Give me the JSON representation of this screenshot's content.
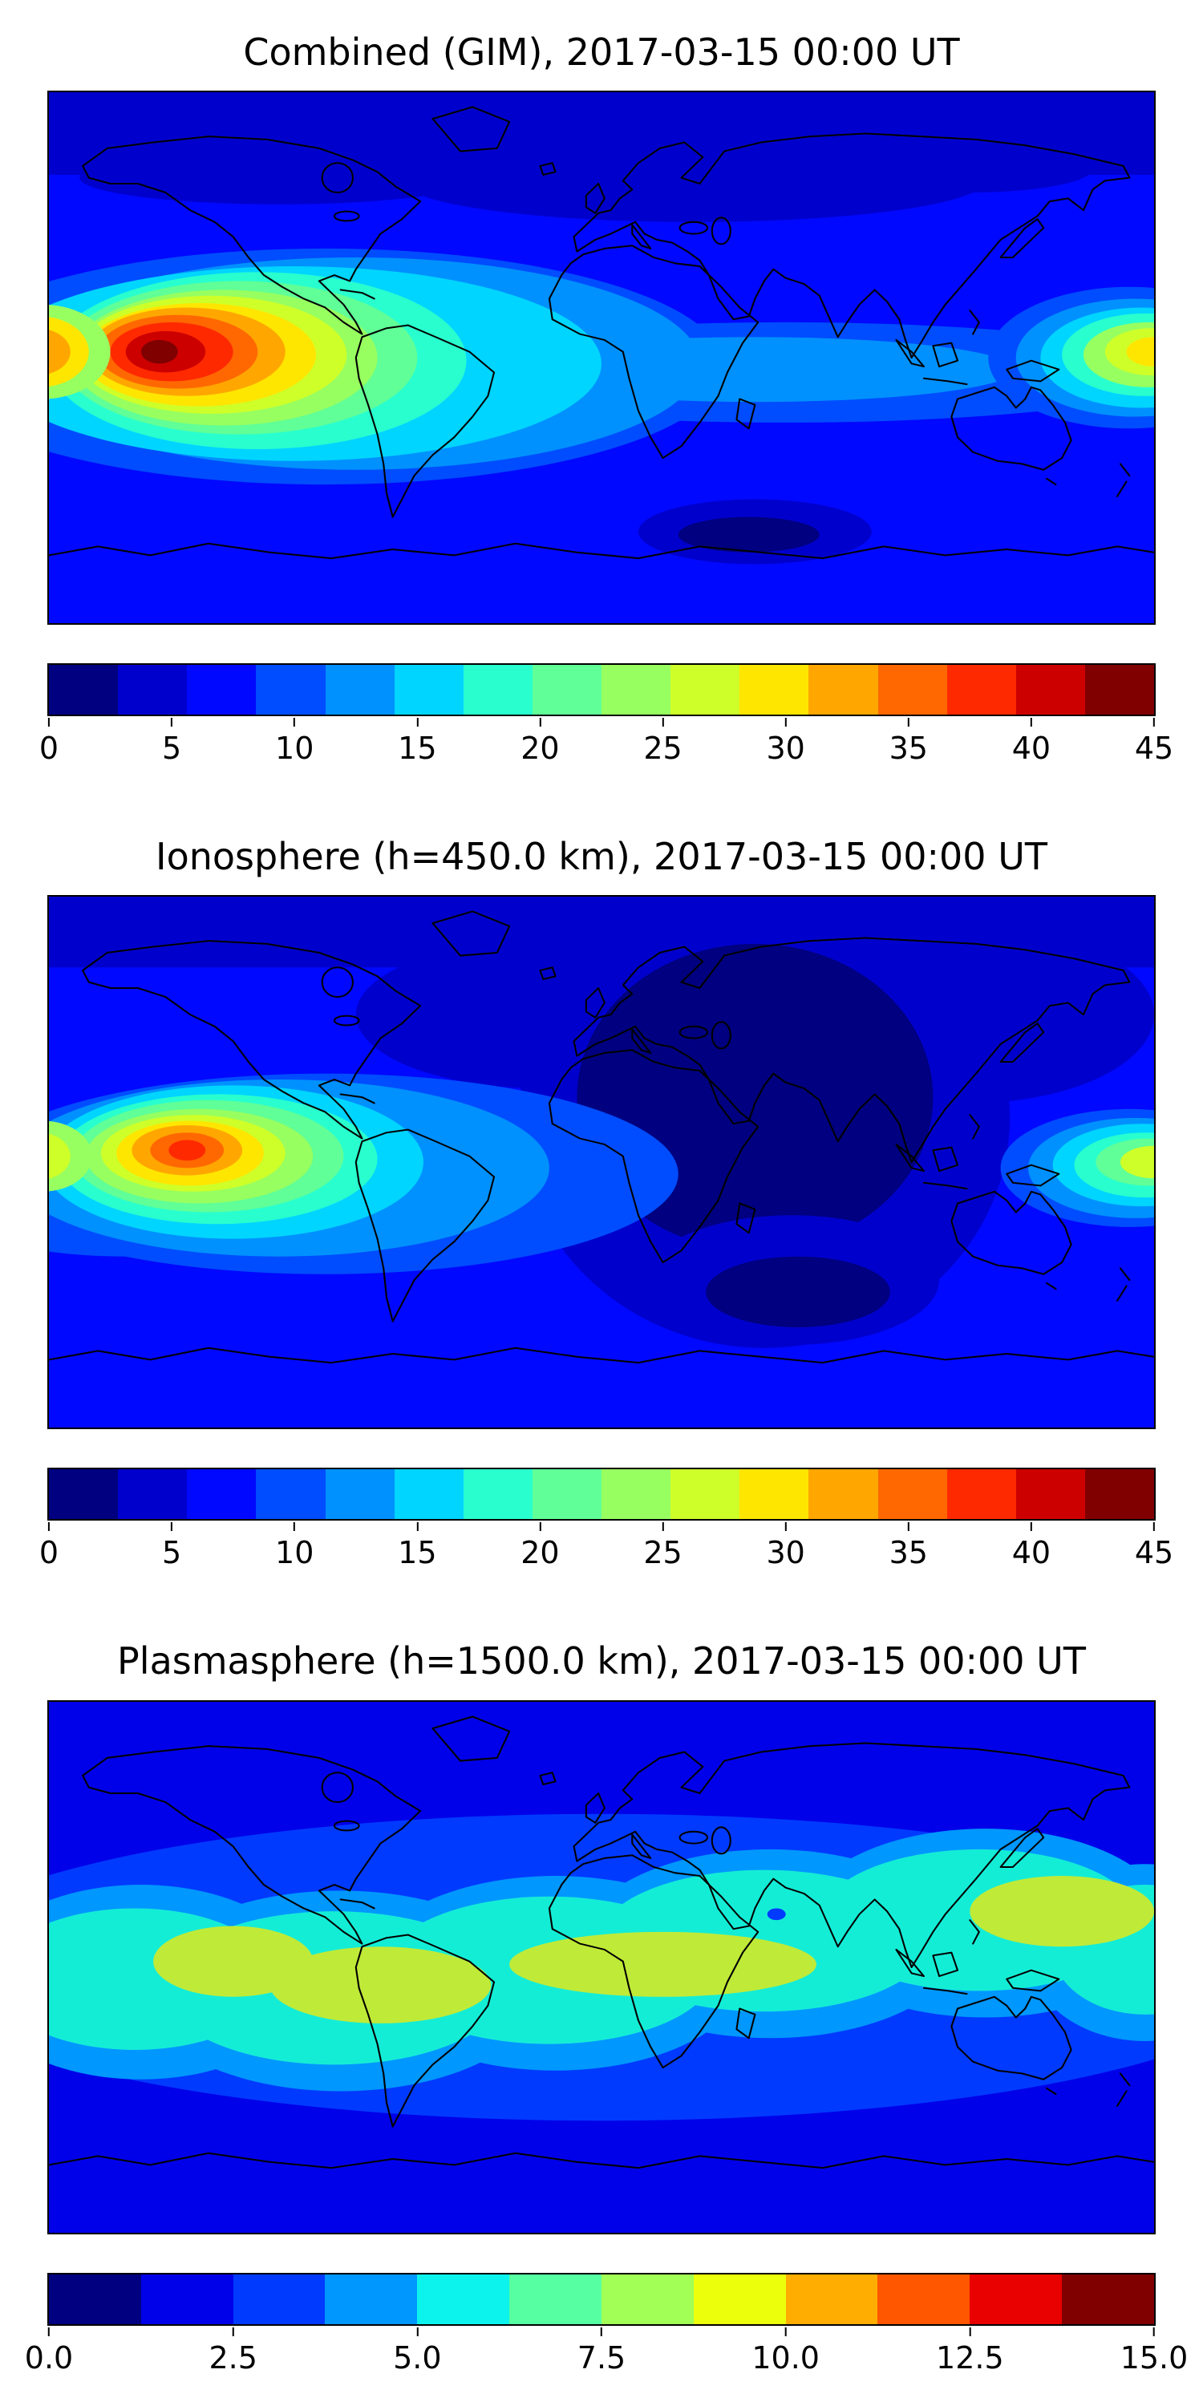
{
  "figure": {
    "description": "Three stacked world-map filled-contour panels of total electron content: combined GIM, ionosphere at 450 km, and plasmasphere at 1500 km, all for 2017-03-15 00:00 UT",
    "background_color": "#ffffff",
    "coastline_color": "#000000",
    "panel_count": 3
  },
  "chart_data": [
    {
      "type": "heatmap",
      "subtype": "filled contour map over world coastlines (equirectangular)",
      "title": "Combined (GIM), 2017-03-15 00:00 UT",
      "timestamp_shown": "2017-03-15 00:00 UT",
      "lon_range": [
        -180,
        180
      ],
      "lat_range": [
        -90,
        90
      ],
      "grid": false,
      "colormap": "jet",
      "colorbar": {
        "orientation": "horizontal",
        "position": "below map",
        "min": 0,
        "max": 45,
        "ticks": [
          0,
          5,
          10,
          15,
          20,
          25,
          30,
          35,
          40,
          45
        ],
        "tick_labels": [
          "0",
          "5",
          "10",
          "15",
          "20",
          "25",
          "30",
          "35",
          "40",
          "45"
        ],
        "segment_colors": [
          "#000080",
          "#0000cd",
          "#0008ff",
          "#004dff",
          "#0091ff",
          "#00d5ff",
          "#29ffce",
          "#60ff97",
          "#97ff60",
          "#ceff29",
          "#ffe600",
          "#ffa700",
          "#ff6800",
          "#ff2900",
          "#cd0000",
          "#800000"
        ]
      },
      "features": [
        {
          "name": "primary maximum",
          "approx_lon": -140,
          "approx_lat": -2,
          "approx_peak_value": 44,
          "appearance": "large dark-red core with orange/yellow/green/cyan rings over the eastern Pacific reaching the west coast of South America"
        },
        {
          "name": "secondary maximum",
          "approx_lon": 178,
          "approx_lat": 1,
          "approx_peak_value": 30,
          "appearance": "yellow-green enhancement at the right (west Pacific) map edge"
        },
        {
          "name": "equatorial band",
          "approx_value_range": [
            10,
            20
          ],
          "appearance": "cyan / light-blue band along the equator fading eastward over the Atlantic and Africa"
        },
        {
          "name": "southern minimum",
          "approx_lon": 45,
          "approx_lat": -58,
          "approx_value": 2,
          "appearance": "dark navy patch in the southern Indian Ocean sector"
        },
        {
          "name": "high-latitude background",
          "approx_value_range": [
            3,
            8
          ]
        }
      ]
    },
    {
      "type": "heatmap",
      "subtype": "filled contour map over world coastlines (equirectangular)",
      "title": "Ionosphere (h=450.0 km), 2017-03-15 00:00 UT",
      "timestamp_shown": "2017-03-15 00:00 UT",
      "lon_range": [
        -180,
        180
      ],
      "lat_range": [
        -90,
        90
      ],
      "grid": false,
      "colormap": "jet",
      "colorbar": {
        "orientation": "horizontal",
        "position": "below map",
        "min": 0,
        "max": 45,
        "ticks": [
          0,
          5,
          10,
          15,
          20,
          25,
          30,
          35,
          40,
          45
        ],
        "tick_labels": [
          "0",
          "5",
          "10",
          "15",
          "20",
          "25",
          "30",
          "35",
          "40",
          "45"
        ],
        "segment_colors": [
          "#000080",
          "#0000cd",
          "#0008ff",
          "#004dff",
          "#0091ff",
          "#00d5ff",
          "#29ffce",
          "#60ff97",
          "#97ff60",
          "#ceff29",
          "#ffe600",
          "#ffa700",
          "#ff6800",
          "#ff2900",
          "#cd0000",
          "#800000"
        ]
      },
      "features": [
        {
          "name": "primary maximum",
          "approx_lon": -135,
          "approx_lat": 3,
          "approx_peak_value": 38,
          "appearance": "orange-red core over the eastern Pacific, smaller and weaker than the combined panel"
        },
        {
          "name": "secondary maximum",
          "approx_lon": 180,
          "approx_lat": -1,
          "approx_peak_value": 26,
          "appearance": "green-yellow enhancement at the right map edge"
        },
        {
          "name": "nightside depletion",
          "approx_value_range": [
            1,
            4
          ],
          "appearance": "very dark navy region covering Europe, Africa, central Asia and the Indian Ocean"
        },
        {
          "name": "background",
          "approx_value_range": [
            4,
            7
          ]
        }
      ]
    },
    {
      "type": "heatmap",
      "subtype": "filled contour map over world coastlines (equirectangular)",
      "title": "Plasmasphere (h=1500.0 km), 2017-03-15 00:00 UT",
      "timestamp_shown": "2017-03-15 00:00 UT",
      "lon_range": [
        -180,
        180
      ],
      "lat_range": [
        -90,
        90
      ],
      "grid": false,
      "colormap": "jet",
      "colorbar": {
        "orientation": "horizontal",
        "position": "below map",
        "min": 0,
        "max": 15,
        "ticks": [
          0,
          2.5,
          5,
          7.5,
          10,
          12.5,
          15
        ],
        "tick_labels": [
          "0.0",
          "2.5",
          "5.0",
          "7.5",
          "10.0",
          "12.5",
          "15.0"
        ],
        "segment_colors": [
          "#000080",
          "#0000e9",
          "#003aff",
          "#0097ff",
          "#0bf3ec",
          "#56ffa1",
          "#a1ff56",
          "#ecff0b",
          "#ffad00",
          "#ff5700",
          "#e90000",
          "#800000"
        ]
      },
      "features": [
        {
          "name": "plasmaspheric equatorial belt",
          "approx_value_range": [
            5,
            7.5
          ],
          "appearance": "turquoise wavy band following the magnetic equator, shifted north over Asia and south over the Americas"
        },
        {
          "name": "belt maxima",
          "approx_value_range": [
            9,
            10
          ],
          "appearance": "yellow-green patches near lon -100..-50, lon 0..50 and lon 140..180 along the belt"
        },
        {
          "name": "small depletion spot",
          "approx_lon": 57,
          "approx_lat": 18,
          "approx_value": 3,
          "appearance": "tiny blue dot inside the turquoise belt"
        },
        {
          "name": "high-latitude background",
          "approx_value_range": [
            1,
            3
          ],
          "appearance": "uniform deep blue toward both poles"
        }
      ]
    }
  ]
}
